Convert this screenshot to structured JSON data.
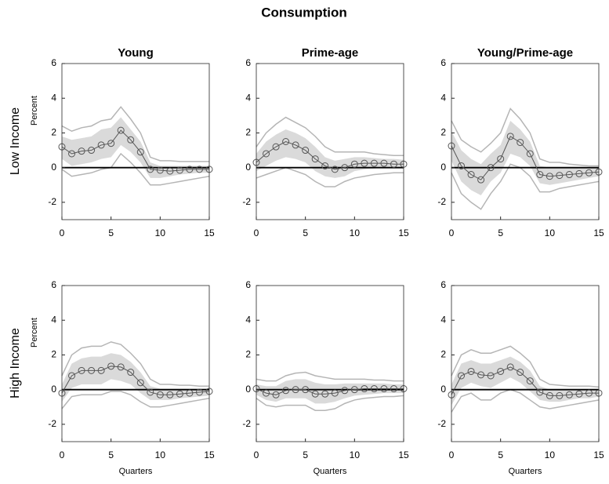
{
  "title": "Consumption",
  "row_labels": [
    "Low Income",
    "High Income"
  ],
  "chart_data": [
    {
      "type": "line",
      "title": "Young",
      "ylabel": "Percent",
      "x": [
        0,
        1,
        2,
        3,
        4,
        5,
        6,
        7,
        8,
        9,
        10,
        11,
        12,
        13,
        14,
        15
      ],
      "values": [
        1.2,
        0.8,
        0.95,
        1.0,
        1.3,
        1.4,
        2.15,
        1.6,
        0.9,
        -0.1,
        -0.15,
        -0.2,
        -0.15,
        -0.1,
        -0.1,
        -0.1
      ],
      "band": {
        "upper": [
          1.8,
          1.6,
          1.7,
          1.8,
          2.2,
          2.3,
          2.9,
          2.2,
          1.5,
          0.3,
          0.1,
          0.1,
          0.1,
          0.1,
          0.1,
          0.1
        ],
        "lower": [
          0.5,
          0.1,
          0.2,
          0.3,
          0.5,
          0.6,
          1.3,
          0.9,
          0.3,
          -0.6,
          -0.6,
          -0.5,
          -0.4,
          -0.35,
          -0.3,
          -0.3
        ]
      },
      "outer": {
        "upper": [
          2.4,
          2.1,
          2.3,
          2.4,
          2.7,
          2.8,
          3.5,
          2.8,
          2.0,
          0.6,
          0.4,
          0.4,
          0.35,
          0.35,
          0.35,
          0.35
        ],
        "lower": [
          -0.1,
          -0.5,
          -0.4,
          -0.3,
          -0.1,
          0.0,
          0.8,
          0.3,
          -0.3,
          -1.0,
          -1.0,
          -0.9,
          -0.8,
          -0.7,
          -0.6,
          -0.5
        ]
      },
      "color": "#555555",
      "band_color": "#dadada",
      "outer_color": "#b5b5b5",
      "xlim": [
        0,
        15
      ],
      "xticks": [
        0,
        5,
        10,
        15
      ],
      "ylim": [
        -3,
        6
      ],
      "yticks": [
        -2,
        0,
        2,
        4,
        6
      ],
      "zero_line": true
    },
    {
      "type": "line",
      "title": "Prime-age",
      "x": [
        0,
        1,
        2,
        3,
        4,
        5,
        6,
        7,
        8,
        9,
        10,
        11,
        12,
        13,
        14,
        15
      ],
      "values": [
        0.3,
        0.8,
        1.2,
        1.5,
        1.3,
        1.0,
        0.5,
        0.1,
        -0.1,
        0.0,
        0.2,
        0.25,
        0.25,
        0.25,
        0.2,
        0.2
      ],
      "band": {
        "upper": [
          0.8,
          1.5,
          1.9,
          2.2,
          2.0,
          1.7,
          1.2,
          0.6,
          0.4,
          0.5,
          0.6,
          0.6,
          0.55,
          0.5,
          0.5,
          0.45
        ],
        "lower": [
          -0.2,
          0.1,
          0.4,
          0.6,
          0.5,
          0.3,
          -0.2,
          -0.5,
          -0.6,
          -0.5,
          -0.2,
          -0.1,
          -0.05,
          0,
          0,
          0
        ]
      },
      "outer": {
        "upper": [
          1.2,
          2.0,
          2.5,
          2.9,
          2.6,
          2.3,
          1.8,
          1.2,
          0.9,
          0.9,
          0.9,
          0.9,
          0.8,
          0.75,
          0.7,
          0.7
        ],
        "lower": [
          -0.6,
          -0.4,
          -0.2,
          0.0,
          -0.2,
          -0.4,
          -0.8,
          -1.1,
          -1.1,
          -0.8,
          -0.6,
          -0.5,
          -0.4,
          -0.35,
          -0.3,
          -0.3
        ]
      },
      "color": "#555555",
      "band_color": "#dadada",
      "outer_color": "#b5b5b5",
      "xlim": [
        0,
        15
      ],
      "xticks": [
        0,
        5,
        10,
        15
      ],
      "ylim": [
        -3,
        6
      ],
      "yticks": [
        -2,
        0,
        2,
        4,
        6
      ],
      "zero_line": true
    },
    {
      "type": "line",
      "title": "Young/Prime-age",
      "x": [
        0,
        1,
        2,
        3,
        4,
        5,
        6,
        7,
        8,
        9,
        10,
        11,
        12,
        13,
        14,
        15
      ],
      "values": [
        1.25,
        0.1,
        -0.4,
        -0.7,
        0.0,
        0.5,
        1.8,
        1.45,
        0.8,
        -0.4,
        -0.5,
        -0.45,
        -0.4,
        -0.35,
        -0.3,
        -0.25
      ],
      "band": {
        "upper": [
          2.1,
          1.0,
          0.5,
          0.2,
          0.8,
          1.3,
          2.7,
          2.2,
          1.5,
          0.1,
          0.0,
          0.0,
          0.0,
          -0.05,
          0,
          0
        ],
        "lower": [
          0.4,
          -0.8,
          -1.3,
          -1.6,
          -0.8,
          -0.3,
          0.8,
          0.6,
          0.1,
          -0.9,
          -1.0,
          -0.9,
          -0.8,
          -0.7,
          -0.6,
          -0.5
        ]
      },
      "outer": {
        "upper": [
          2.7,
          1.6,
          1.2,
          0.9,
          1.4,
          2.0,
          3.4,
          2.8,
          2.0,
          0.5,
          0.3,
          0.3,
          0.2,
          0.15,
          0.1,
          0.1
        ],
        "lower": [
          -0.3,
          -1.5,
          -2.0,
          -2.4,
          -1.5,
          -0.8,
          0.2,
          0.0,
          -0.5,
          -1.4,
          -1.4,
          -1.2,
          -1.1,
          -1.0,
          -0.9,
          -0.8
        ]
      },
      "color": "#555555",
      "band_color": "#dadada",
      "outer_color": "#b5b5b5",
      "xlim": [
        0,
        15
      ],
      "xticks": [
        0,
        5,
        10,
        15
      ],
      "ylim": [
        -3,
        6
      ],
      "yticks": [
        -2,
        0,
        2,
        4,
        6
      ],
      "zero_line": true
    },
    {
      "type": "line",
      "ylabel": "Percent",
      "xlabel": "Quarters",
      "x": [
        0,
        1,
        2,
        3,
        4,
        5,
        6,
        7,
        8,
        9,
        10,
        11,
        12,
        13,
        14,
        15
      ],
      "values": [
        -0.2,
        0.8,
        1.1,
        1.1,
        1.1,
        1.35,
        1.3,
        1.0,
        0.4,
        -0.15,
        -0.3,
        -0.3,
        -0.25,
        -0.2,
        -0.15,
        -0.1
      ],
      "band": {
        "upper": [
          0.3,
          1.5,
          1.8,
          1.9,
          1.9,
          2.1,
          2.0,
          1.6,
          1.0,
          0.2,
          0.05,
          0.05,
          0.05,
          0.05,
          0.05,
          0.05
        ],
        "lower": [
          -0.7,
          0.1,
          0.3,
          0.3,
          0.3,
          0.6,
          0.5,
          0.3,
          -0.2,
          -0.6,
          -0.6,
          -0.6,
          -0.5,
          -0.45,
          -0.4,
          -0.35
        ]
      },
      "outer": {
        "upper": [
          0.8,
          2.0,
          2.4,
          2.5,
          2.5,
          2.75,
          2.6,
          2.1,
          1.5,
          0.6,
          0.3,
          0.3,
          0.25,
          0.25,
          0.2,
          0.2
        ],
        "lower": [
          -1.1,
          -0.4,
          -0.3,
          -0.3,
          -0.3,
          -0.1,
          -0.1,
          -0.3,
          -0.7,
          -1.0,
          -1.0,
          -0.9,
          -0.8,
          -0.7,
          -0.6,
          -0.5
        ]
      },
      "color": "#555555",
      "band_color": "#dadada",
      "outer_color": "#b5b5b5",
      "xlim": [
        0,
        15
      ],
      "xticks": [
        0,
        5,
        10,
        15
      ],
      "ylim": [
        -3,
        6
      ],
      "yticks": [
        -2,
        0,
        2,
        4,
        6
      ],
      "zero_line": true
    },
    {
      "type": "line",
      "xlabel": "Quarters",
      "x": [
        0,
        1,
        2,
        3,
        4,
        5,
        6,
        7,
        8,
        9,
        10,
        11,
        12,
        13,
        14,
        15
      ],
      "values": [
        0.05,
        -0.2,
        -0.3,
        -0.05,
        0.0,
        0.0,
        -0.25,
        -0.25,
        -0.2,
        -0.05,
        0.0,
        0.05,
        0.05,
        0.05,
        0.05,
        0.05
      ],
      "band": {
        "upper": [
          0.3,
          0.2,
          0.2,
          0.5,
          0.6,
          0.6,
          0.4,
          0.3,
          0.3,
          0.35,
          0.35,
          0.35,
          0.35,
          0.35,
          0.3,
          0.3
        ],
        "lower": [
          -0.3,
          -0.6,
          -0.7,
          -0.5,
          -0.5,
          -0.5,
          -0.8,
          -0.8,
          -0.7,
          -0.5,
          -0.35,
          -0.3,
          -0.25,
          -0.2,
          -0.2,
          -0.2
        ]
      },
      "outer": {
        "upper": [
          0.6,
          0.5,
          0.5,
          0.8,
          0.95,
          1.0,
          0.8,
          0.7,
          0.6,
          0.6,
          0.6,
          0.6,
          0.55,
          0.55,
          0.5,
          0.5
        ],
        "lower": [
          -0.5,
          -0.9,
          -1.0,
          -0.9,
          -0.9,
          -0.9,
          -1.2,
          -1.2,
          -1.1,
          -0.8,
          -0.6,
          -0.5,
          -0.45,
          -0.4,
          -0.4,
          -0.35
        ]
      },
      "color": "#555555",
      "band_color": "#dadada",
      "outer_color": "#b5b5b5",
      "xlim": [
        0,
        15
      ],
      "xticks": [
        0,
        5,
        10,
        15
      ],
      "ylim": [
        -3,
        6
      ],
      "yticks": [
        -2,
        0,
        2,
        4,
        6
      ],
      "zero_line": true
    },
    {
      "type": "line",
      "xlabel": "Quarters",
      "x": [
        0,
        1,
        2,
        3,
        4,
        5,
        6,
        7,
        8,
        9,
        10,
        11,
        12,
        13,
        14,
        15
      ],
      "values": [
        -0.3,
        0.8,
        1.05,
        0.85,
        0.8,
        1.05,
        1.3,
        1.0,
        0.5,
        -0.15,
        -0.35,
        -0.35,
        -0.3,
        -0.25,
        -0.2,
        -0.2
      ],
      "band": {
        "upper": [
          0.3,
          1.5,
          1.7,
          1.5,
          1.5,
          1.7,
          1.9,
          1.6,
          1.1,
          0.2,
          0,
          0,
          0,
          0,
          0,
          0
        ],
        "lower": [
          -0.9,
          0.1,
          0.4,
          0.2,
          0.1,
          0.4,
          0.7,
          0.4,
          -0.1,
          -0.6,
          -0.7,
          -0.7,
          -0.6,
          -0.5,
          -0.5,
          -0.4
        ]
      },
      "outer": {
        "upper": [
          0.8,
          2.0,
          2.3,
          2.1,
          2.1,
          2.3,
          2.5,
          2.1,
          1.6,
          0.6,
          0.3,
          0.25,
          0.2,
          0.2,
          0.2,
          0.15
        ],
        "lower": [
          -1.3,
          -0.4,
          -0.2,
          -0.6,
          -0.6,
          -0.2,
          0.0,
          -0.2,
          -0.6,
          -1.0,
          -1.1,
          -1.0,
          -0.9,
          -0.8,
          -0.7,
          -0.6
        ]
      },
      "color": "#555555",
      "band_color": "#dadada",
      "outer_color": "#b5b5b5",
      "xlim": [
        0,
        15
      ],
      "xticks": [
        0,
        5,
        10,
        15
      ],
      "ylim": [
        -3,
        6
      ],
      "yticks": [
        -2,
        0,
        2,
        4,
        6
      ],
      "zero_line": true
    }
  ]
}
